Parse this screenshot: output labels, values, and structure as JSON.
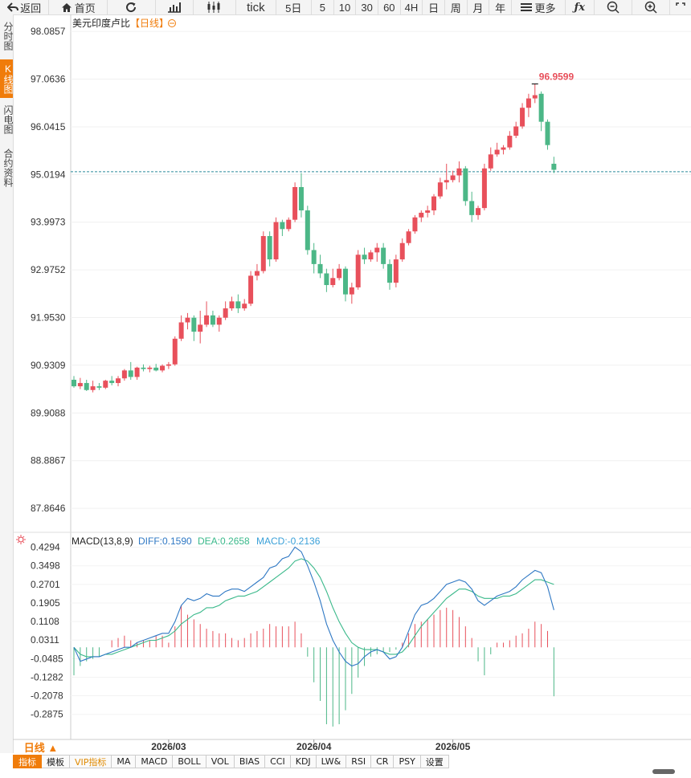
{
  "toolbar": {
    "back": "返回",
    "home": "首页",
    "tick": "tick",
    "p5d": "5日",
    "p5": "5",
    "p10": "10",
    "p30": "30",
    "p60": "60",
    "p4h": "4H",
    "pday": "日",
    "pweek": "周",
    "pmonth": "月",
    "pyear": "年",
    "more": "更多"
  },
  "side_tabs": [
    "分时图",
    "K线图",
    "闪电图",
    "合约资料"
  ],
  "title": "美元印度卢比",
  "period_tag": "【日线】",
  "high_label": "96.9599",
  "last_price_line": 95.08,
  "macd_header": {
    "name": "MACD(13,8,9)",
    "diff": "DIFF:0.1590",
    "dea": "DEA:0.2658",
    "macd": "MACD:-0.2136"
  },
  "period_select": "日线 ▲",
  "indicator_tabs": [
    "指标",
    "模板",
    "VIP指标",
    "MA",
    "MACD",
    "BOLL",
    "VOL",
    "BIAS",
    "CCI",
    "KDJ",
    "LW&",
    "RSI",
    "CR",
    "PSY",
    "设置"
  ],
  "colors": {
    "up": "#e8505b",
    "down": "#4cb787",
    "diff": "#2f78c4",
    "dea": "#3bb98b",
    "accent": "#f07c0a"
  },
  "chart_data": [
    {
      "type": "candlestick",
      "title": "美元印度卢比【日线】",
      "y_ticks": [
        "98.0857",
        "97.0636",
        "96.0415",
        "95.0194",
        "93.9973",
        "92.9752",
        "91.9530",
        "90.9309",
        "89.9088",
        "88.8867",
        "87.8646"
      ],
      "ylim": [
        87.35,
        98.45
      ],
      "x_labels": [
        "2026/03",
        "2026/04",
        "2026/05"
      ],
      "last_price": 95.08,
      "max_label": "96.9599",
      "ohlc": [
        [
          90.62,
          90.7,
          90.45,
          90.48
        ],
        [
          90.48,
          90.66,
          90.42,
          90.55
        ],
        [
          90.55,
          90.62,
          90.38,
          90.4
        ],
        [
          90.4,
          90.6,
          90.35,
          90.48
        ],
        [
          90.48,
          90.55,
          90.4,
          90.45
        ],
        [
          90.45,
          90.62,
          90.42,
          90.6
        ],
        [
          90.6,
          90.7,
          90.5,
          90.55
        ],
        [
          90.55,
          90.7,
          90.48,
          90.65
        ],
        [
          90.65,
          90.85,
          90.6,
          90.82
        ],
        [
          90.82,
          91.0,
          90.62,
          90.68
        ],
        [
          90.68,
          90.9,
          90.62,
          90.88
        ],
        [
          90.88,
          90.95,
          90.8,
          90.85
        ],
        [
          90.85,
          90.92,
          90.78,
          90.88
        ],
        [
          90.88,
          90.96,
          90.8,
          90.82
        ],
        [
          90.82,
          90.95,
          90.78,
          90.92
        ],
        [
          90.92,
          91.0,
          90.85,
          90.95
        ],
        [
          90.95,
          91.55,
          90.92,
          91.5
        ],
        [
          91.5,
          92.0,
          91.45,
          91.85
        ],
        [
          91.85,
          92.05,
          91.7,
          91.95
        ],
        [
          91.95,
          92.0,
          91.45,
          91.65
        ],
        [
          91.65,
          92.1,
          91.4,
          91.8
        ],
        [
          91.8,
          92.3,
          91.75,
          92.0
        ],
        [
          92.0,
          92.1,
          91.75,
          91.8
        ],
        [
          91.8,
          92.0,
          91.65,
          91.95
        ],
        [
          91.95,
          92.3,
          91.9,
          92.15
        ],
        [
          92.15,
          92.4,
          92.1,
          92.3
        ],
        [
          92.3,
          92.45,
          92.05,
          92.15
        ],
        [
          92.15,
          92.35,
          92.1,
          92.25
        ],
        [
          92.25,
          92.95,
          92.2,
          92.85
        ],
        [
          92.85,
          93.1,
          92.75,
          92.95
        ],
        [
          92.95,
          93.8,
          92.9,
          93.7
        ],
        [
          93.7,
          93.8,
          93.05,
          93.2
        ],
        [
          93.2,
          94.1,
          93.15,
          94.0
        ],
        [
          94.0,
          94.05,
          93.7,
          93.85
        ],
        [
          93.85,
          94.1,
          93.8,
          94.05
        ],
        [
          94.05,
          94.85,
          94.0,
          94.75
        ],
        [
          94.75,
          95.05,
          94.1,
          94.25
        ],
        [
          94.25,
          94.35,
          93.3,
          93.4
        ],
        [
          93.4,
          93.55,
          92.9,
          93.1
        ],
        [
          93.1,
          93.3,
          92.8,
          92.9
        ],
        [
          92.9,
          93.0,
          92.5,
          92.65
        ],
        [
          92.65,
          93.0,
          92.6,
          92.8
        ],
        [
          92.8,
          93.1,
          92.75,
          93.0
        ],
        [
          93.0,
          93.05,
          92.3,
          92.45
        ],
        [
          92.45,
          92.7,
          92.25,
          92.6
        ],
        [
          92.6,
          93.4,
          92.55,
          93.3
        ],
        [
          93.3,
          93.45,
          93.1,
          93.2
        ],
        [
          93.2,
          93.4,
          93.15,
          93.35
        ],
        [
          93.35,
          93.55,
          93.15,
          93.45
        ],
        [
          93.45,
          93.55,
          93.0,
          93.1
        ],
        [
          93.1,
          93.2,
          92.55,
          92.7
        ],
        [
          92.7,
          93.3,
          92.6,
          93.2
        ],
        [
          93.2,
          93.65,
          93.15,
          93.55
        ],
        [
          93.55,
          93.85,
          93.5,
          93.8
        ],
        [
          93.8,
          94.15,
          93.75,
          94.1
        ],
        [
          94.1,
          94.25,
          94.0,
          94.2
        ],
        [
          94.2,
          94.35,
          94.1,
          94.25
        ],
        [
          94.25,
          94.6,
          94.15,
          94.55
        ],
        [
          94.55,
          94.95,
          94.5,
          94.85
        ],
        [
          94.85,
          95.25,
          94.7,
          94.9
        ],
        [
          94.9,
          95.1,
          94.85,
          95.0
        ],
        [
          95.0,
          95.3,
          94.85,
          95.15
        ],
        [
          95.15,
          95.2,
          94.35,
          94.45
        ],
        [
          94.45,
          94.65,
          94.0,
          94.15
        ],
        [
          94.15,
          94.35,
          94.05,
          94.3
        ],
        [
          94.3,
          95.25,
          94.25,
          95.15
        ],
        [
          95.15,
          95.6,
          95.1,
          95.45
        ],
        [
          95.45,
          95.7,
          95.4,
          95.55
        ],
        [
          95.55,
          95.65,
          95.45,
          95.6
        ],
        [
          95.6,
          95.95,
          95.55,
          95.85
        ],
        [
          95.85,
          96.15,
          95.8,
          96.05
        ],
        [
          96.05,
          96.55,
          96.0,
          96.45
        ],
        [
          96.45,
          96.75,
          96.25,
          96.65
        ],
        [
          96.65,
          96.96,
          96.55,
          96.72
        ],
        [
          96.75,
          96.8,
          95.95,
          96.15
        ],
        [
          96.15,
          96.2,
          95.55,
          95.65
        ],
        [
          95.25,
          95.4,
          95.05,
          95.12
        ]
      ]
    },
    {
      "type": "macd",
      "title": "MACD(13,8,9)",
      "y_ticks": [
        "0.4294",
        "0.3498",
        "0.2701",
        "0.1905",
        "0.1108",
        "0.0311",
        "-0.0485",
        "-0.1282",
        "-0.2078",
        "-0.2875"
      ],
      "ylim": [
        -0.385,
        0.49
      ],
      "diff": [
        0.0,
        -0.06,
        -0.05,
        -0.04,
        -0.04,
        -0.03,
        -0.02,
        -0.01,
        0.0,
        0.0,
        0.02,
        0.03,
        0.04,
        0.05,
        0.06,
        0.06,
        0.11,
        0.18,
        0.21,
        0.2,
        0.21,
        0.23,
        0.22,
        0.22,
        0.24,
        0.25,
        0.25,
        0.24,
        0.26,
        0.28,
        0.3,
        0.34,
        0.35,
        0.38,
        0.39,
        0.43,
        0.41,
        0.35,
        0.28,
        0.2,
        0.1,
        0.03,
        -0.02,
        -0.06,
        -0.08,
        -0.07,
        -0.04,
        -0.02,
        -0.01,
        -0.02,
        -0.05,
        -0.04,
        0.0,
        0.07,
        0.14,
        0.18,
        0.19,
        0.21,
        0.24,
        0.27,
        0.28,
        0.29,
        0.28,
        0.25,
        0.2,
        0.18,
        0.2,
        0.22,
        0.23,
        0.24,
        0.26,
        0.29,
        0.31,
        0.33,
        0.32,
        0.26,
        0.16
      ],
      "dea": [
        0.0,
        -0.03,
        -0.04,
        -0.04,
        -0.04,
        -0.03,
        -0.03,
        -0.02,
        -0.01,
        0.0,
        0.01,
        0.02,
        0.03,
        0.03,
        0.04,
        0.05,
        0.07,
        0.1,
        0.12,
        0.14,
        0.15,
        0.17,
        0.17,
        0.18,
        0.2,
        0.21,
        0.22,
        0.22,
        0.23,
        0.24,
        0.26,
        0.28,
        0.3,
        0.32,
        0.34,
        0.37,
        0.38,
        0.37,
        0.34,
        0.3,
        0.24,
        0.17,
        0.11,
        0.06,
        0.02,
        0.0,
        -0.01,
        -0.01,
        -0.01,
        -0.02,
        -0.03,
        -0.03,
        -0.02,
        0.01,
        0.05,
        0.09,
        0.12,
        0.15,
        0.18,
        0.21,
        0.23,
        0.25,
        0.25,
        0.24,
        0.22,
        0.21,
        0.21,
        0.21,
        0.22,
        0.22,
        0.23,
        0.25,
        0.27,
        0.29,
        0.29,
        0.28,
        0.27
      ],
      "macd": [
        -0.12,
        -0.08,
        -0.06,
        -0.05,
        -0.04,
        0.0,
        0.03,
        0.04,
        0.05,
        0.03,
        0.02,
        0.03,
        0.03,
        0.05,
        0.05,
        0.02,
        0.09,
        0.18,
        0.14,
        0.12,
        0.1,
        0.08,
        0.07,
        0.06,
        0.06,
        0.04,
        0.03,
        0.04,
        0.06,
        0.07,
        0.08,
        0.1,
        0.09,
        0.09,
        0.09,
        0.11,
        0.06,
        -0.04,
        -0.15,
        -0.23,
        -0.33,
        -0.34,
        -0.33,
        -0.27,
        -0.2,
        -0.13,
        -0.08,
        -0.04,
        -0.03,
        -0.02,
        -0.02,
        -0.01,
        0.02,
        0.06,
        0.1,
        0.11,
        0.12,
        0.14,
        0.16,
        0.17,
        0.16,
        0.13,
        0.09,
        0.04,
        -0.06,
        -0.12,
        -0.03,
        0.02,
        0.02,
        0.03,
        0.05,
        0.06,
        0.08,
        0.11,
        0.1,
        0.07,
        -0.21
      ]
    }
  ]
}
